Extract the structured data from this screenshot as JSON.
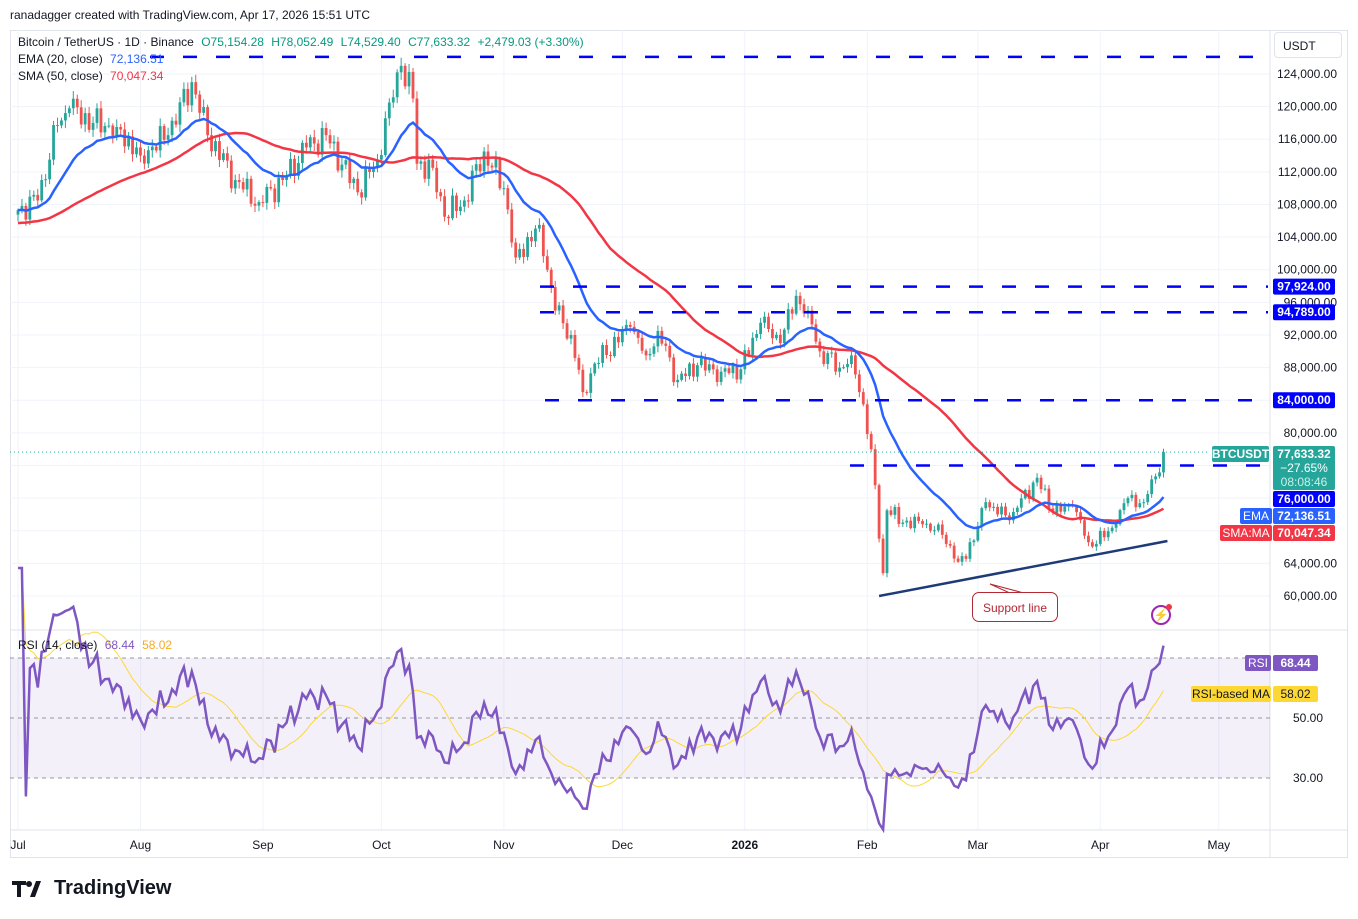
{
  "credit": "ranadagger created with TradingView.com, Apr 17, 2026 15:51 UTC",
  "header": {
    "symbol": "Bitcoin / TetherUS · 1D · Binance",
    "open": "O75,154.28",
    "high": "H78,052.49",
    "low": "L74,529.40",
    "close": "C77,633.32",
    "change": "+2,479.03 (+3.30%)"
  },
  "indicators": {
    "ema_label": "EMA (20, close)",
    "ema_value": "72,136.51",
    "sma_label": "SMA (50, close)",
    "sma_value": "70,047.34",
    "rsi_label": "RSI (14, close)",
    "rsi_value": "68.44",
    "rsi_ma_value": "58.02"
  },
  "currency": "USDT",
  "badges": {
    "symbol_tag": "BTCUSDT",
    "last_price": "77,633.32",
    "last_change": "−27.65%",
    "countdown": "08:08:46",
    "level_76000": "76,000.00",
    "level_84000": "84,000.00",
    "level_94789": "94,789.00",
    "level_97924": "97,924.00",
    "ema_tag": "EMA",
    "ema_price": "72,136.51",
    "sma_tag": "SMA:MA",
    "sma_price": "70,047.34",
    "rsi_tag": "RSI",
    "rsi_price": "68.44",
    "rsi_ma_tag": "RSI-based MA",
    "rsi_ma_price": "58.02"
  },
  "annotation": "Support line",
  "brand": "TradingView",
  "colors": {
    "up": "#26a69a",
    "down": "#ef5350",
    "ema": "#2962ff",
    "sma": "#f23645",
    "level": "#0000ff",
    "support": "#1e3a78",
    "rsi": "#7e57c2",
    "rsi_ma": "#fdd835"
  },
  "chart_data": {
    "type": "candlestick",
    "start_date": "2025-07-01",
    "price_ticks": [
      "124,000.00",
      "120,000.00",
      "116,000.00",
      "112,000.00",
      "108,000.00",
      "104,000.00",
      "100,000.00",
      "96,000.00",
      "92,000.00",
      "88,000.00",
      "80,000.00",
      "64,000.00",
      "60,000.00"
    ],
    "time_ticks": [
      {
        "label": "Jul",
        "date": "2025-07-01"
      },
      {
        "label": "Aug",
        "date": "2025-08-01"
      },
      {
        "label": "Sep",
        "date": "2025-09-01"
      },
      {
        "label": "Oct",
        "date": "2025-10-01"
      },
      {
        "label": "Nov",
        "date": "2025-11-01"
      },
      {
        "label": "Dec",
        "date": "2025-12-01"
      },
      {
        "label": "2026",
        "date": "2026-01-01",
        "bold": true
      },
      {
        "label": "Feb",
        "date": "2026-02-01"
      },
      {
        "label": "Mar",
        "date": "2026-03-01"
      },
      {
        "label": "Apr",
        "date": "2026-04-01"
      },
      {
        "label": "May",
        "date": "2026-05-01"
      }
    ],
    "rsi_ticks": [
      "50.00",
      "30.00"
    ],
    "close_anchors": [
      [
        "2025-07-01",
        107300
      ],
      [
        "2025-07-06",
        108500
      ],
      [
        "2025-07-11",
        117700
      ],
      [
        "2025-07-14",
        119800
      ],
      [
        "2025-07-20",
        118000
      ],
      [
        "2025-07-26",
        117500
      ],
      [
        "2025-08-01",
        114000
      ],
      [
        "2025-08-08",
        116500
      ],
      [
        "2025-08-14",
        123000
      ],
      [
        "2025-08-18",
        116500
      ],
      [
        "2025-08-25",
        111000
      ],
      [
        "2025-08-31",
        108300
      ],
      [
        "2025-09-06",
        111000
      ],
      [
        "2025-09-12",
        115000
      ],
      [
        "2025-09-17",
        116500
      ],
      [
        "2025-09-25",
        109500
      ],
      [
        "2025-09-30",
        113500
      ],
      [
        "2025-10-03",
        120500
      ],
      [
        "2025-10-06",
        125000
      ],
      [
        "2025-10-09",
        121000
      ],
      [
        "2025-10-10",
        113000
      ],
      [
        "2025-10-14",
        112500
      ],
      [
        "2025-10-17",
        106500
      ],
      [
        "2025-10-22",
        108500
      ],
      [
        "2025-10-27",
        114500
      ],
      [
        "2025-11-01",
        110000
      ],
      [
        "2025-11-04",
        101500
      ],
      [
        "2025-11-10",
        105500
      ],
      [
        "2025-11-14",
        95000
      ],
      [
        "2025-11-18",
        92000
      ],
      [
        "2025-11-21",
        85000
      ],
      [
        "2025-11-24",
        88500
      ],
      [
        "2025-12-03",
        93000
      ],
      [
        "2025-12-07",
        89500
      ],
      [
        "2025-12-10",
        92500
      ],
      [
        "2025-12-15",
        86500
      ],
      [
        "2025-12-20",
        88300
      ],
      [
        "2025-12-26",
        87500
      ],
      [
        "2025-12-31",
        87800
      ],
      [
        "2026-01-05",
        93500
      ],
      [
        "2026-01-10",
        91000
      ],
      [
        "2026-01-14",
        96800
      ],
      [
        "2026-01-17",
        95000
      ],
      [
        "2026-01-20",
        90000
      ],
      [
        "2026-01-25",
        88000
      ],
      [
        "2026-01-28",
        89500
      ],
      [
        "2026-01-31",
        83500
      ],
      [
        "2026-02-02",
        78000
      ],
      [
        "2026-02-05",
        62800
      ],
      [
        "2026-02-06",
        70500
      ],
      [
        "2026-02-10",
        69000
      ],
      [
        "2026-02-15",
        68800
      ],
      [
        "2026-02-20",
        67500
      ],
      [
        "2026-02-24",
        64200
      ],
      [
        "2026-02-28",
        66800
      ],
      [
        "2026-03-03",
        71500
      ],
      [
        "2026-03-06",
        70000
      ],
      [
        "2026-03-10",
        70300
      ],
      [
        "2026-03-16",
        74500
      ],
      [
        "2026-03-20",
        70200
      ],
      [
        "2026-03-25",
        71000
      ],
      [
        "2026-03-29",
        66600
      ],
      [
        "2026-04-02",
        67200
      ],
      [
        "2026-04-05",
        68800
      ],
      [
        "2026-04-08",
        72000
      ],
      [
        "2026-04-12",
        71500
      ],
      [
        "2026-04-14",
        74300
      ],
      [
        "2026-04-16",
        75154.28
      ],
      [
        "2026-04-17",
        77633.32
      ]
    ],
    "last_candle": {
      "open": 75154.28,
      "high": 78052.49,
      "low": 74529.4,
      "close": 77633.32
    },
    "levels": [
      126100,
      97924,
      94789,
      84000,
      76000
    ],
    "support_line": [
      [
        "2026-02-04",
        60000
      ],
      [
        "2026-04-18",
        66740
      ]
    ],
    "ema_period": 20,
    "sma_period": 50,
    "rsi_period": 14,
    "rsi_bands": [
      70,
      50,
      30
    ]
  }
}
